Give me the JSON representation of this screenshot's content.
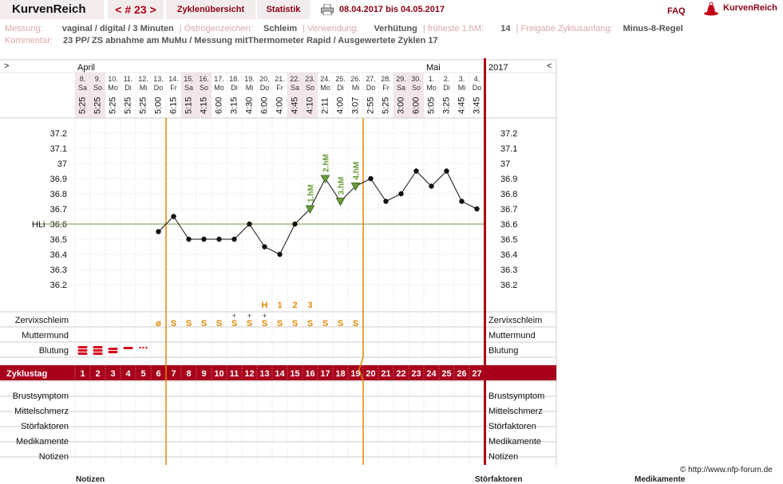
{
  "nav": {
    "brand": "KurvenReich",
    "cycle": "< # 23 >",
    "overview": "Zyklenübersicht",
    "stats": "Statistik",
    "daterange": "08.04.2017 bis 04.05.2017",
    "faq": "FAQ",
    "logo_text": "KurvenReich",
    "printer_icon": "printer-icon",
    "logo_icon": "hat-icon"
  },
  "info": {
    "messung_label": "Messung:",
    "messung_value": "vaginal / digital / 3 Minuten",
    "oestrogen_label": "Östrogenzeichen:",
    "oestrogen_value": "Schleim",
    "verwendung_label": "Verwendung:",
    "verwendung_value": "Verhütung",
    "frueheste_label": "früheste 1.hM:",
    "frueheste_value": "14",
    "freigabe_label": "Freigabe Zyklusanfang:",
    "freigabe_value": "Minus-8-Regel",
    "kommentar_label": "Kommentar:",
    "kommentar_value": "23 PP/  ZS abnahme am MuMu / Messung mitThermometer Rapid / Ausgewertete Zyklen 17"
  },
  "chart_data": {
    "type": "line",
    "corner_left": ">",
    "corner_right": "<",
    "year": "2017",
    "months": [
      {
        "label": "April",
        "day_index": 0
      },
      {
        "label": "Mai",
        "day_index": 23
      }
    ],
    "dates": [
      "8.",
      "9.",
      "10.",
      "11.",
      "12.",
      "13.",
      "14.",
      "15.",
      "16.",
      "17.",
      "18.",
      "19.",
      "20.",
      "21.",
      "22.",
      "23.",
      "24.",
      "25.",
      "26.",
      "27.",
      "28.",
      "29.",
      "30.",
      "1.",
      "2.",
      "3.",
      "4."
    ],
    "weekdays": [
      "Sa",
      "So",
      "Mo",
      "Di",
      "Mi",
      "Do",
      "Fr",
      "Sa",
      "So",
      "Mo",
      "Di",
      "Mi",
      "Do",
      "Fr",
      "Sa",
      "So",
      "Mo",
      "Di",
      "Mi",
      "Do",
      "Fr",
      "Sa",
      "So",
      "Mo",
      "Di",
      "Mi",
      "Do"
    ],
    "weekend_days": [
      0,
      1,
      7,
      8,
      14,
      15,
      21,
      22
    ],
    "times": [
      "5:25",
      "5:25",
      "5:25",
      "5:25",
      "5:25",
      "5:00",
      "6:15",
      "5:15",
      "4:15",
      "6:00",
      "3:15",
      "4:30",
      "6:00",
      "4:00",
      "4:45",
      "4:10",
      "2:11",
      "4:00",
      "3:07",
      "2:55",
      "5:25",
      "3:00",
      "6:00",
      "5:05",
      "3:25",
      "4:45",
      "3:45"
    ],
    "cycle_days": [
      "1",
      "2",
      "3",
      "4",
      "5",
      "6",
      "7",
      "8",
      "9",
      "10",
      "11",
      "12",
      "13",
      "14",
      "15",
      "16",
      "17",
      "18",
      "19",
      "20",
      "21",
      "22",
      "23",
      "24",
      "25",
      "26",
      "27"
    ],
    "cycle_day_highlight": [
      6,
      7,
      8,
      9,
      10,
      11,
      12,
      13,
      14,
      15,
      16,
      17,
      18
    ],
    "temperatures": [
      null,
      null,
      null,
      null,
      null,
      36.55,
      36.65,
      36.5,
      36.5,
      36.5,
      36.5,
      36.6,
      36.45,
      36.4,
      36.6,
      36.7,
      36.9,
      36.75,
      36.85,
      36.9,
      36.75,
      36.8,
      36.95,
      36.85,
      36.95,
      36.75,
      36.7
    ],
    "higher_measurements": [
      {
        "day_index": 15,
        "label": "1.hM"
      },
      {
        "day_index": 16,
        "label": "2.hM"
      },
      {
        "day_index": 17,
        "label": "3.hM"
      },
      {
        "day_index": 18,
        "label": "4.hM"
      }
    ],
    "coverline": 36.6,
    "coverline_label": "HLi",
    "y_ticks": [
      "37.2",
      "37.1",
      "37",
      "36.9",
      "36.8",
      "36.7",
      "36.6",
      "36.5",
      "36.4",
      "36.3",
      "36.2"
    ],
    "ylim": [
      36.1,
      37.3
    ],
    "mucus_peak_markers": [
      {
        "day_index": 12,
        "label": "H"
      },
      {
        "day_index": 13,
        "label": "1"
      },
      {
        "day_index": 14,
        "label": "2"
      },
      {
        "day_index": 15,
        "label": "3"
      }
    ],
    "mucus": [
      "",
      "",
      "",
      "",
      "",
      "ø",
      "S",
      "S",
      "S",
      "S",
      "S",
      "S",
      "S",
      "S",
      "S",
      "S",
      "S",
      "S",
      "S",
      "",
      "",
      "",
      "",
      "",
      "",
      "",
      ""
    ],
    "mucus_plus": [
      10,
      11,
      12
    ],
    "bleeding": [
      "heavy",
      "heavy",
      "medium",
      "light",
      "spotting",
      "",
      "",
      "",
      "",
      "",
      "",
      "",
      "",
      "",
      "",
      "",
      "",
      "",
      "",
      "",
      "",
      "",
      "",
      "",
      "",
      "",
      ""
    ],
    "row_labels": {
      "zervix": "Zervixschleim",
      "muttermund": "Muttermund",
      "blutung": "Blutung",
      "zyklustag": "Zyklustag",
      "brust": "Brustsymptom",
      "mittel": "Mittelschmerz",
      "stoer": "Störfaktoren",
      "medi": "Medikamente",
      "notizen": "Notizen"
    },
    "colors": {
      "dark_red": "#a8001a",
      "orange": "#e08a00",
      "green": "#6a9b3a",
      "muttermund": "#4a6fc7",
      "zervix": "#e08a00"
    }
  },
  "footer": {
    "copyright": "© http://www.nfp-forum.de",
    "cut1": "Notizen",
    "cut2": "Störfaktoren",
    "cut3": "Medikamente"
  }
}
